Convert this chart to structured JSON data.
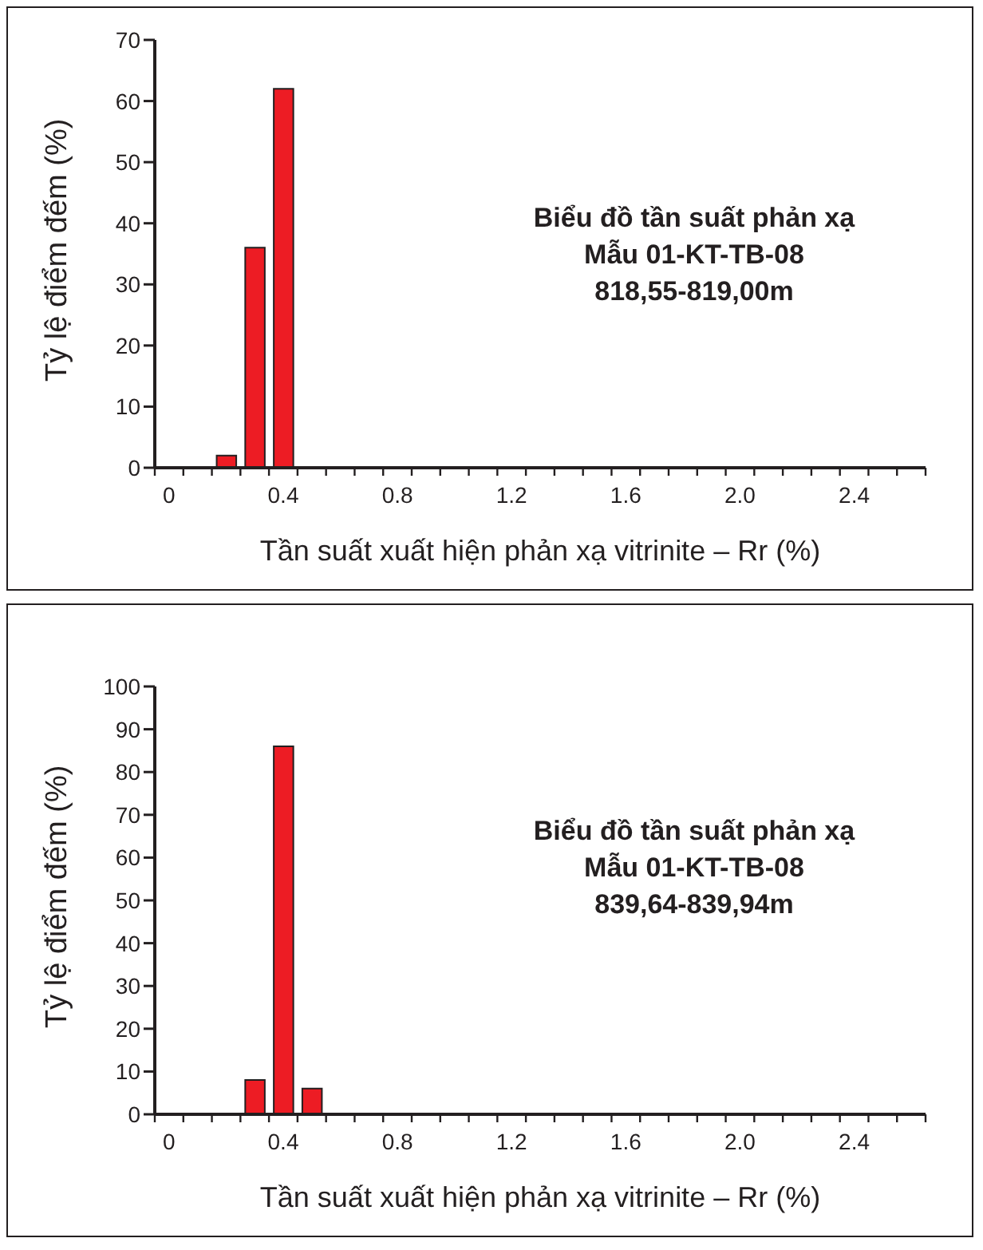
{
  "chart_data": [
    {
      "type": "bar",
      "title": "Biểu đồ tần suất phản xạ",
      "subtitle": "Mẫu 01-KT-TB-08",
      "annotations": [
        "818,55-819,00m"
      ],
      "xlabel": "Tần suất xuất hiện phản xạ vitrinite – Rr (%)",
      "ylabel": "Tỷ lệ điểm đếm (%)",
      "x": [
        0.2,
        0.3,
        0.4
      ],
      "values": [
        2,
        36,
        62
      ],
      "color": "#ed1c24",
      "xlim": [
        -0.05,
        2.65
      ],
      "xticks": [
        0,
        0.4,
        0.8,
        1.2,
        1.6,
        {
          "value": 2,
          "label": "2.0"
        },
        2.4,
        {
          "value": -0.05,
          "label": null
        },
        {
          "value": 0.05,
          "label": null
        },
        {
          "value": 0.15,
          "label": null
        },
        {
          "value": 0.25,
          "label": null
        },
        {
          "value": 0.35,
          "label": null
        },
        {
          "value": 0.45,
          "label": null
        },
        {
          "value": 0.55,
          "label": null
        },
        {
          "value": 0.65,
          "label": null
        },
        {
          "value": 0.75,
          "label": null
        },
        {
          "value": 0.85,
          "label": null
        },
        {
          "value": 0.95,
          "label": null
        },
        {
          "value": 1.05,
          "label": null
        },
        {
          "value": 1.15,
          "label": null
        },
        {
          "value": 1.25,
          "label": null
        },
        {
          "value": 1.35,
          "label": null
        },
        {
          "value": 1.45,
          "label": null
        },
        {
          "value": 1.55,
          "label": null
        },
        {
          "value": 1.65,
          "label": null
        },
        {
          "value": 1.75,
          "label": null
        },
        {
          "value": 1.85,
          "label": null
        },
        {
          "value": 1.95,
          "label": null
        },
        {
          "value": 2.05,
          "label": null
        },
        {
          "value": 2.15,
          "label": null
        },
        {
          "value": 2.25,
          "label": null
        },
        {
          "value": 2.35,
          "label": null
        },
        {
          "value": 2.45,
          "label": null
        },
        {
          "value": 2.55,
          "label": null
        },
        {
          "value": 2.65,
          "label": null
        }
      ],
      "ylim": [
        0,
        70
      ],
      "yticks": [
        0,
        10,
        20,
        30,
        40,
        50,
        60,
        70
      ],
      "grid": false,
      "legend": false
    },
    {
      "type": "bar",
      "title": "Biểu đồ tần suất phản xạ",
      "subtitle": "Mẫu 01-KT-TB-08",
      "annotations": [
        "839,64-839,94m"
      ],
      "xlabel": "Tần suất xuất hiện phản xạ vitrinite – Rr (%)",
      "ylabel": "Tỷ lệ điểm đếm (%)",
      "x": [
        0.3,
        0.4,
        0.5
      ],
      "values": [
        8,
        86,
        6
      ],
      "color": "#ed1c24",
      "xlim": [
        -0.05,
        2.65
      ],
      "xticks": [
        0,
        0.4,
        0.8,
        1.2,
        1.6,
        {
          "value": 2,
          "label": "2.0"
        },
        2.4,
        {
          "value": -0.05,
          "label": null
        },
        {
          "value": 0.05,
          "label": null
        },
        {
          "value": 0.15,
          "label": null
        },
        {
          "value": 0.25,
          "label": null
        },
        {
          "value": 0.35,
          "label": null
        },
        {
          "value": 0.45,
          "label": null
        },
        {
          "value": 0.55,
          "label": null
        },
        {
          "value": 0.65,
          "label": null
        },
        {
          "value": 0.75,
          "label": null
        },
        {
          "value": 0.85,
          "label": null
        },
        {
          "value": 0.95,
          "label": null
        },
        {
          "value": 1.05,
          "label": null
        },
        {
          "value": 1.15,
          "label": null
        },
        {
          "value": 1.25,
          "label": null
        },
        {
          "value": 1.35,
          "label": null
        },
        {
          "value": 1.45,
          "label": null
        },
        {
          "value": 1.55,
          "label": null
        },
        {
          "value": 1.65,
          "label": null
        },
        {
          "value": 1.75,
          "label": null
        },
        {
          "value": 1.85,
          "label": null
        },
        {
          "value": 1.95,
          "label": null
        },
        {
          "value": 2.05,
          "label": null
        },
        {
          "value": 2.15,
          "label": null
        },
        {
          "value": 2.25,
          "label": null
        },
        {
          "value": 2.35,
          "label": null
        },
        {
          "value": 2.45,
          "label": null
        },
        {
          "value": 2.55,
          "label": null
        },
        {
          "value": 2.65,
          "label": null
        }
      ],
      "ylim": [
        0,
        100
      ],
      "yticks": [
        0,
        10,
        20,
        30,
        40,
        50,
        60,
        70,
        80,
        90,
        100
      ],
      "grid": false,
      "legend": false
    }
  ]
}
